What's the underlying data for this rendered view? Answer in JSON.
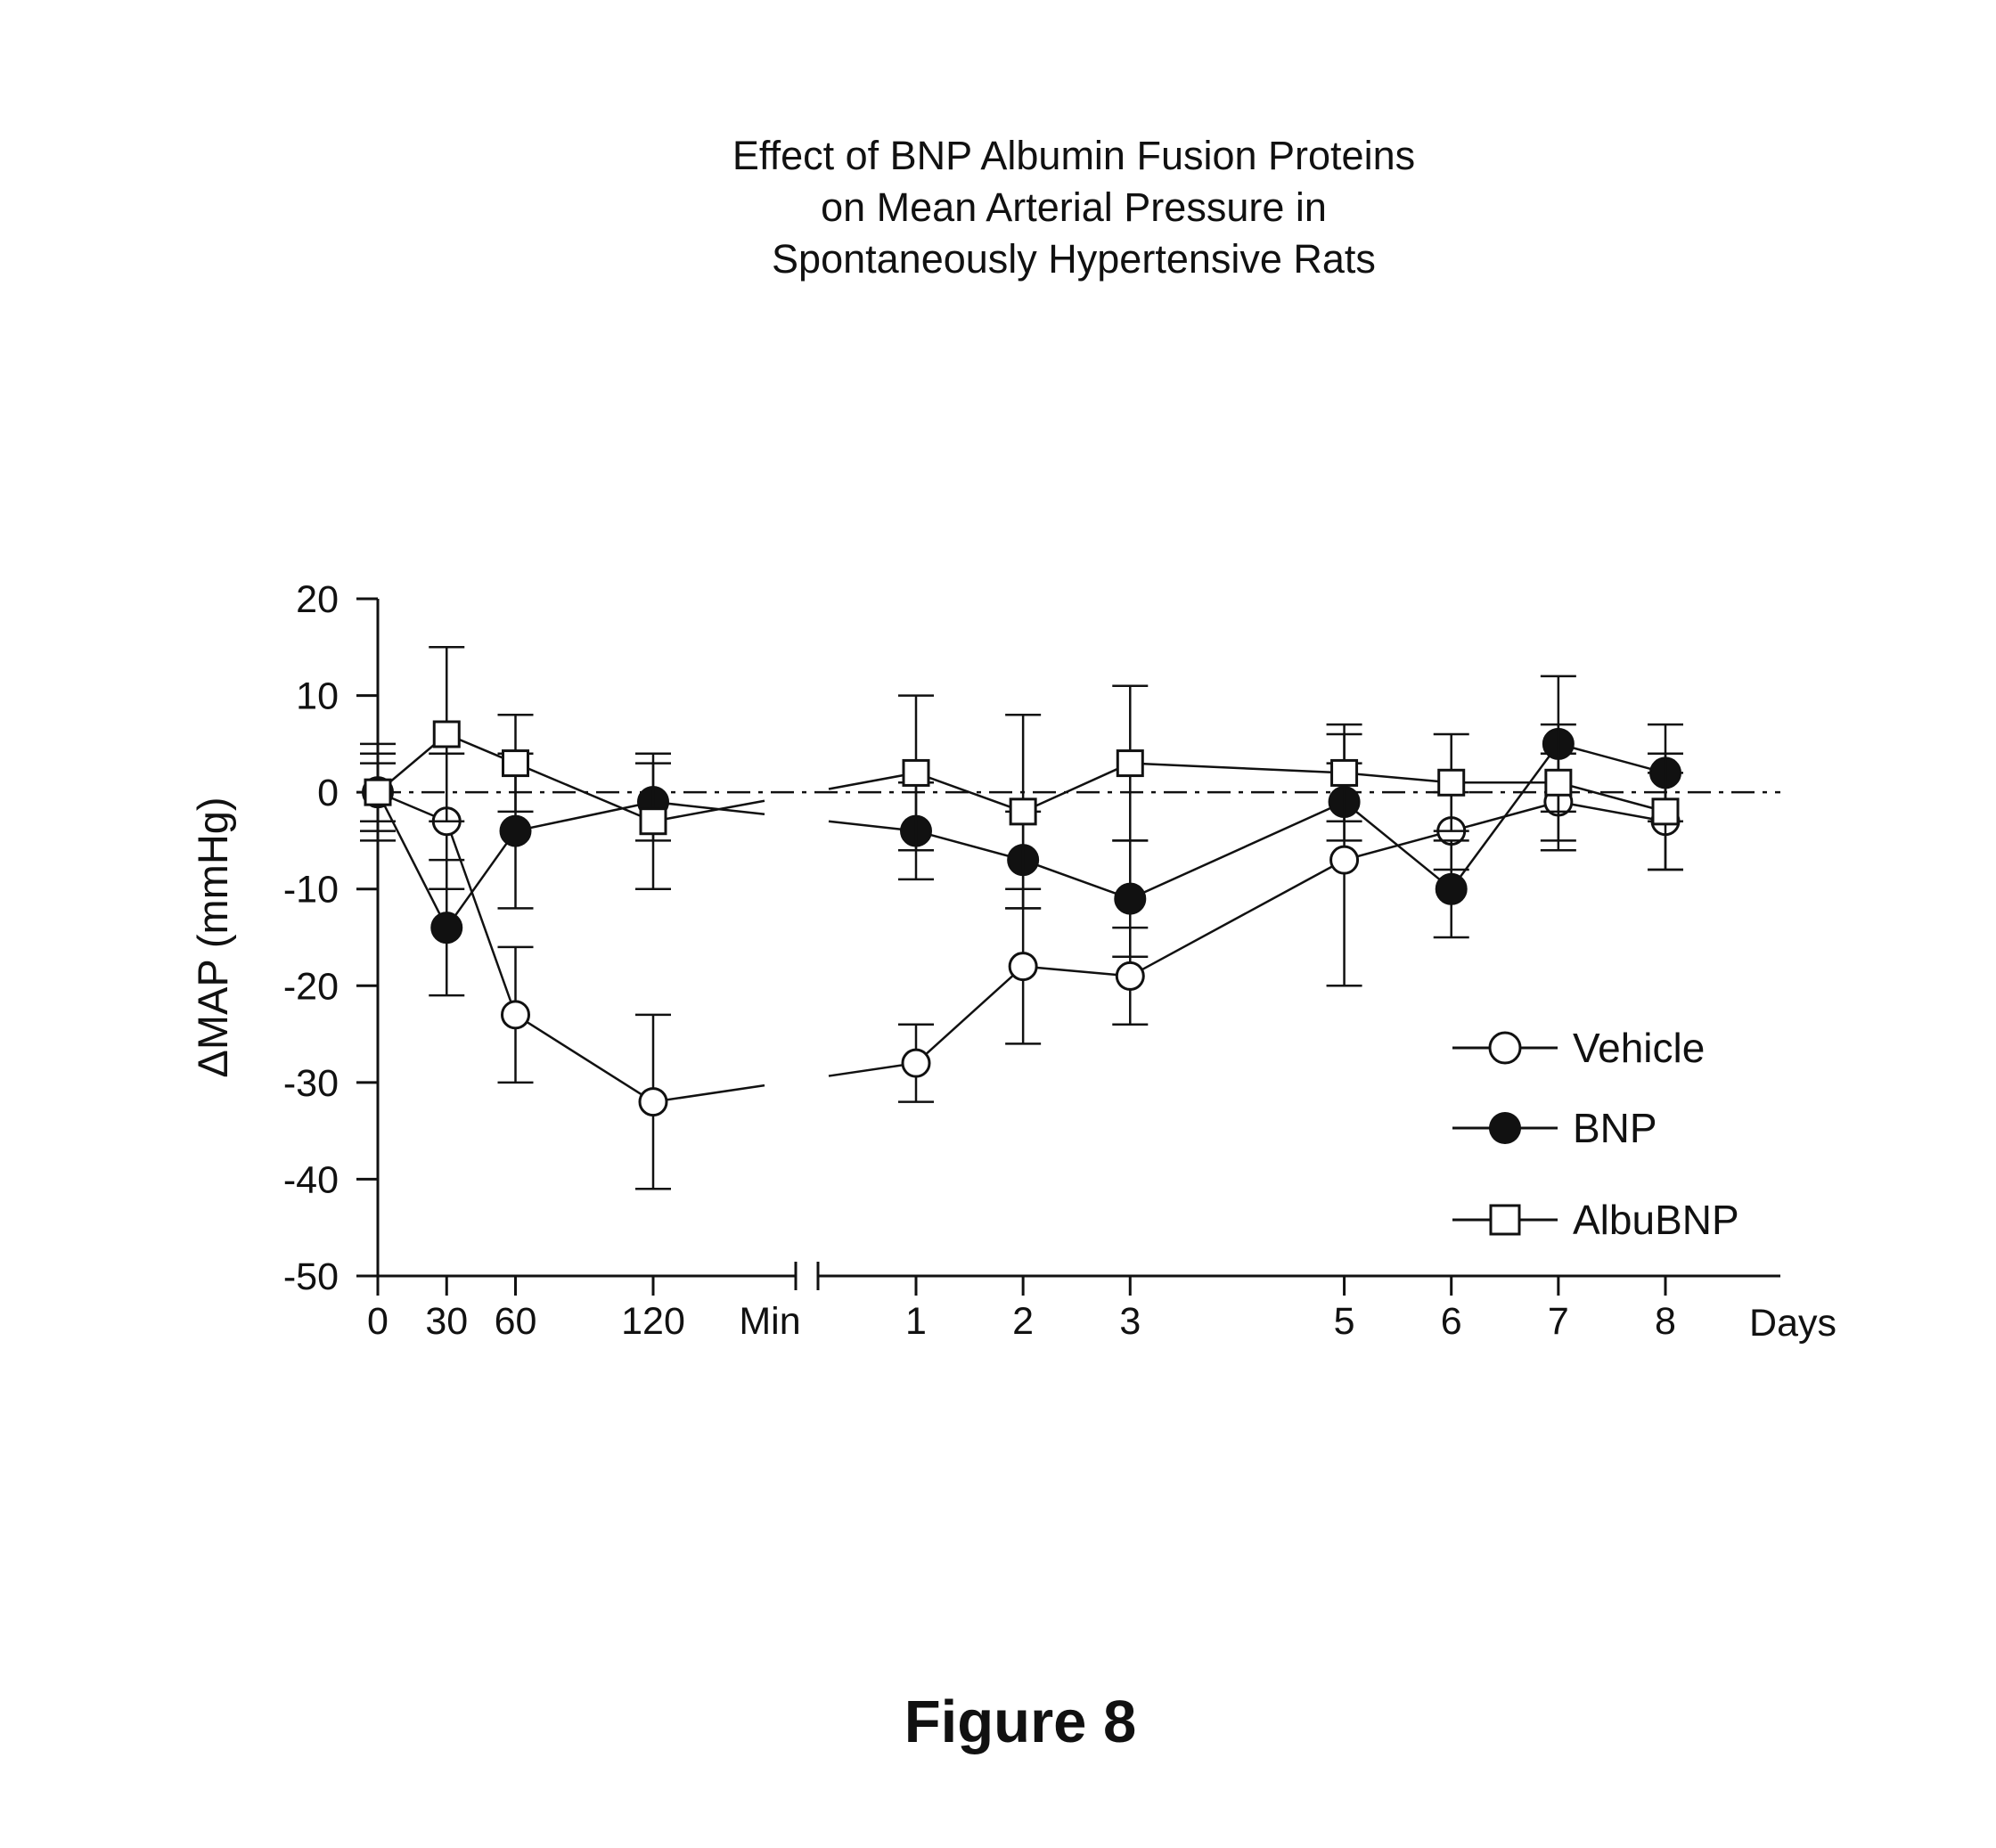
{
  "chart_data": {
    "type": "line",
    "title_lines": [
      "Effect of BNP Albumin Fusion Proteins",
      "on Mean Arterial Pressure in",
      "Spontaneously Hypertensive Rats"
    ],
    "ylabel": "ΔMAP (mmHg)",
    "ylim": [
      -50,
      20
    ],
    "yticks": [
      20,
      10,
      0,
      -10,
      -20,
      -30,
      -40,
      -50
    ],
    "ytick_labels": [
      "20",
      "10",
      "0",
      "-10",
      "-20",
      "-30",
      "-40",
      "-50"
    ],
    "x_segments": [
      {
        "unit_label": "Min",
        "ticks": [
          0,
          30,
          60,
          120
        ],
        "tick_labels": [
          "0",
          "30",
          "60",
          "120"
        ]
      },
      {
        "unit_label": "Days",
        "ticks": [
          1,
          2,
          3,
          5,
          6,
          7,
          8
        ],
        "tick_labels": [
          "1",
          "2",
          "3",
          "5",
          "6",
          "7",
          "8"
        ]
      }
    ],
    "reference_line": {
      "y": 0,
      "style": "dash-dot"
    },
    "series": [
      {
        "name": "Vehicle",
        "marker": "open-circle",
        "points": [
          {
            "segment": 0,
            "x": 0,
            "y": 0,
            "err": 3
          },
          {
            "segment": 0,
            "x": 30,
            "y": -3,
            "err": 7
          },
          {
            "segment": 0,
            "x": 60,
            "y": -23,
            "err": 7
          },
          {
            "segment": 0,
            "x": 120,
            "y": -32,
            "err": 9
          },
          {
            "segment": 1,
            "x": 1,
            "y": -28,
            "err": 4
          },
          {
            "segment": 1,
            "x": 2,
            "y": -18,
            "err": 8
          },
          {
            "segment": 1,
            "x": 3,
            "y": -19,
            "err": 5
          },
          {
            "segment": 1,
            "x": 5,
            "y": -7,
            "err": 13
          },
          {
            "segment": 1,
            "x": 6,
            "y": -4,
            "err": 4
          },
          {
            "segment": 1,
            "x": 7,
            "y": -1,
            "err": 5
          },
          {
            "segment": 1,
            "x": 8,
            "y": -3,
            "err": 5
          }
        ]
      },
      {
        "name": "BNP",
        "marker": "filled-circle",
        "points": [
          {
            "segment": 0,
            "x": 0,
            "y": 0,
            "err": 5
          },
          {
            "segment": 0,
            "x": 30,
            "y": -14,
            "err": 7
          },
          {
            "segment": 0,
            "x": 60,
            "y": -4,
            "err": 8
          },
          {
            "segment": 0,
            "x": 120,
            "y": -1,
            "err": 4
          },
          {
            "segment": 1,
            "x": 1,
            "y": -4,
            "err": 5
          },
          {
            "segment": 1,
            "x": 2,
            "y": -7,
            "err": 5
          },
          {
            "segment": 1,
            "x": 3,
            "y": -11,
            "err": 6
          },
          {
            "segment": 1,
            "x": 5,
            "y": -1,
            "err": 4
          },
          {
            "segment": 1,
            "x": 6,
            "y": -10,
            "err": 5
          },
          {
            "segment": 1,
            "x": 7,
            "y": 5,
            "err": 7
          },
          {
            "segment": 1,
            "x": 8,
            "y": 2,
            "err": 5
          }
        ]
      },
      {
        "name": "AlbuBNP",
        "marker": "open-square",
        "points": [
          {
            "segment": 0,
            "x": 0,
            "y": 0,
            "err": 4
          },
          {
            "segment": 0,
            "x": 30,
            "y": 6,
            "err": 9
          },
          {
            "segment": 0,
            "x": 60,
            "y": 3,
            "err": 5
          },
          {
            "segment": 0,
            "x": 120,
            "y": -3,
            "err": 7
          },
          {
            "segment": 1,
            "x": 1,
            "y": 2,
            "err": 8
          },
          {
            "segment": 1,
            "x": 2,
            "y": -2,
            "err": 10
          },
          {
            "segment": 1,
            "x": 3,
            "y": 3,
            "err": 8
          },
          {
            "segment": 1,
            "x": 5,
            "y": 2,
            "err": 5
          },
          {
            "segment": 1,
            "x": 6,
            "y": 1,
            "err": 5
          },
          {
            "segment": 1,
            "x": 7,
            "y": 1,
            "err": 6
          },
          {
            "segment": 1,
            "x": 8,
            "y": -2,
            "err": 6
          }
        ]
      }
    ],
    "legend": {
      "position": "lower-right",
      "entries": [
        {
          "label": "Vehicle",
          "marker": "open-circle"
        },
        {
          "label": "BNP",
          "marker": "filled-circle"
        },
        {
          "label": "AlbuBNP",
          "marker": "open-square"
        }
      ]
    }
  },
  "figure": {
    "caption": "Figure 8"
  },
  "colors": {
    "ink": "#111111",
    "background": "#ffffff"
  }
}
